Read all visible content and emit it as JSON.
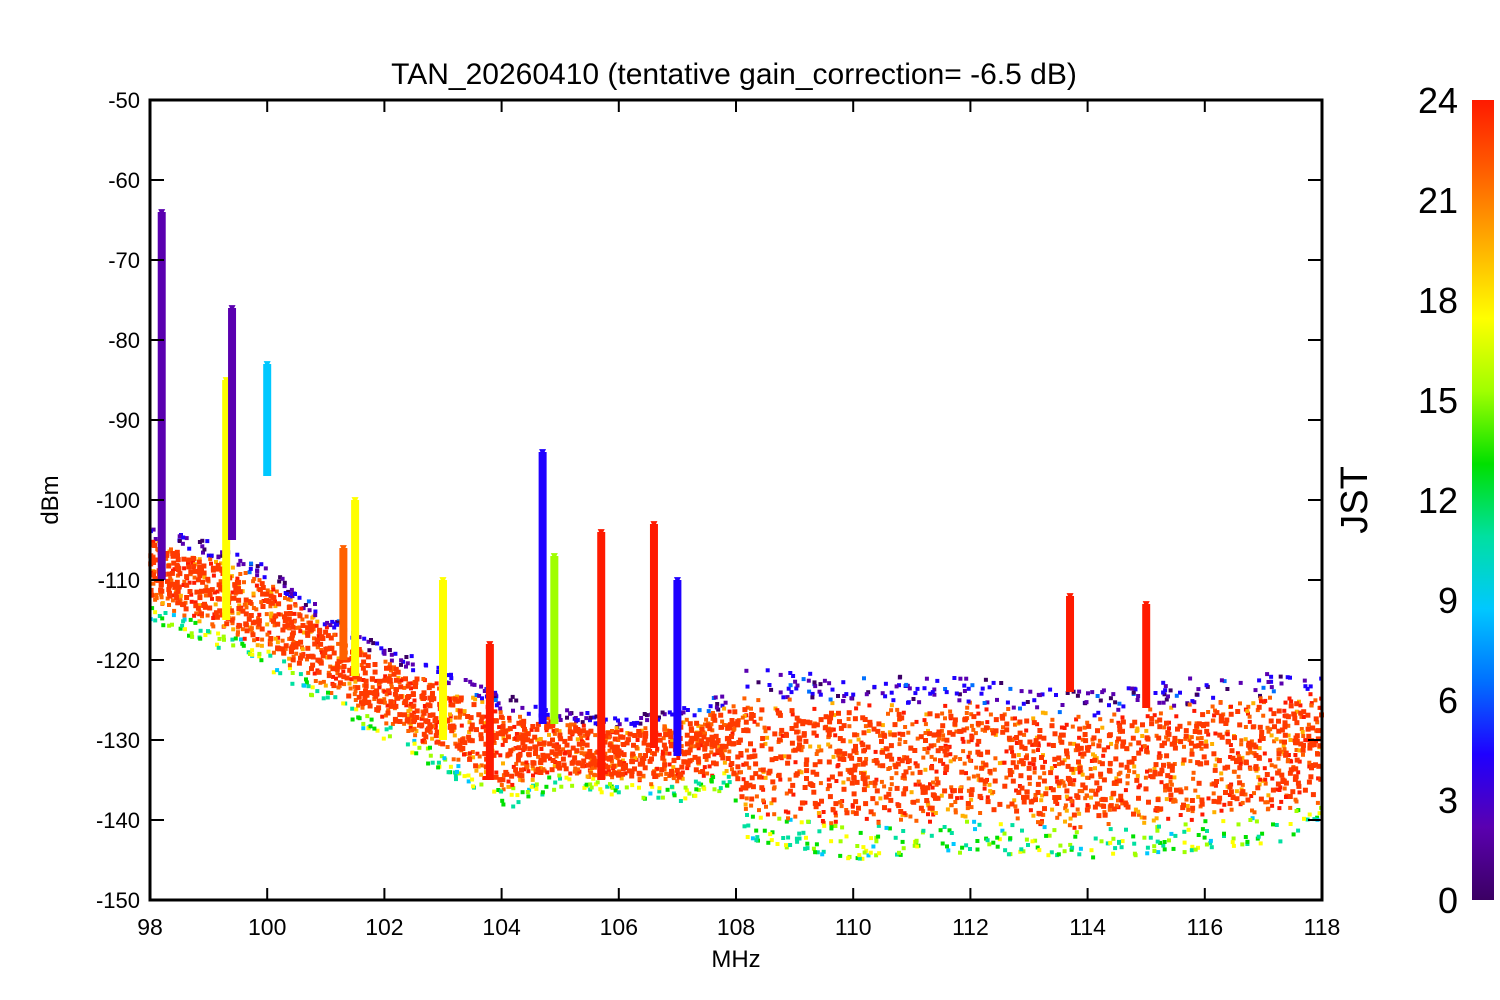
{
  "chart_data": {
    "type": "scatter",
    "title": "TAN_20260410 (tentative gain_correction= -6.5 dB)",
    "xlabel": "MHz",
    "ylabel": "dBm",
    "xlim": [
      98,
      118
    ],
    "ylim": [
      -150,
      -50
    ],
    "xticks": [
      98,
      100,
      102,
      104,
      106,
      108,
      110,
      112,
      114,
      116,
      118
    ],
    "yticks": [
      -50,
      -60,
      -70,
      -80,
      -90,
      -100,
      -110,
      -120,
      -130,
      -140,
      -150
    ],
    "colorbar": {
      "label": "JST",
      "range": [
        0,
        24
      ],
      "ticks": [
        0,
        3,
        6,
        9,
        12,
        15,
        18,
        21,
        24
      ],
      "colormap": "rainbow",
      "colors": [
        "#3b0063",
        "#5a00b0",
        "#1f00ff",
        "#0070ff",
        "#00c8ff",
        "#00e0a0",
        "#00e000",
        "#a0ff00",
        "#ffff00",
        "#ffb000",
        "#ff6000",
        "#ff1a00"
      ]
    },
    "noise_floor": [
      {
        "x": 98.0,
        "lo": -115,
        "hi": -103
      },
      {
        "x": 99.0,
        "lo": -118,
        "hi": -105
      },
      {
        "x": 100.0,
        "lo": -121,
        "hi": -108
      },
      {
        "x": 101.0,
        "lo": -126,
        "hi": -114
      },
      {
        "x": 102.0,
        "lo": -130,
        "hi": -118
      },
      {
        "x": 103.0,
        "lo": -134,
        "hi": -121
      },
      {
        "x": 104.0,
        "lo": -139,
        "hi": -124
      },
      {
        "x": 105.0,
        "lo": -136,
        "hi": -126
      },
      {
        "x": 106.0,
        "lo": -137,
        "hi": -127
      },
      {
        "x": 107.0,
        "lo": -138,
        "hi": -126
      },
      {
        "x": 107.9,
        "lo": -136,
        "hi": -124
      },
      {
        "x": 108.1,
        "lo": -143,
        "hi": -121
      },
      {
        "x": 110.0,
        "lo": -145,
        "hi": -122
      },
      {
        "x": 112.0,
        "lo": -144,
        "hi": -122
      },
      {
        "x": 114.0,
        "lo": -145,
        "hi": -124
      },
      {
        "x": 116.0,
        "lo": -144,
        "hi": -122
      },
      {
        "x": 118.0,
        "lo": -142,
        "hi": -121
      }
    ],
    "spikes": [
      {
        "x": 98.2,
        "top": -64,
        "bottom": -110,
        "jst": 2
      },
      {
        "x": 99.3,
        "top": -85,
        "bottom": -115,
        "jst": 18
      },
      {
        "x": 99.4,
        "top": -76,
        "bottom": -105,
        "jst": 2
      },
      {
        "x": 100.0,
        "top": -83,
        "bottom": -97,
        "jst": 9
      },
      {
        "x": 101.3,
        "top": -106,
        "bottom": -120,
        "jst": 21
      },
      {
        "x": 101.5,
        "top": -100,
        "bottom": -122,
        "jst": 18
      },
      {
        "x": 103.0,
        "top": -110,
        "bottom": -130,
        "jst": 18
      },
      {
        "x": 103.8,
        "top": -118,
        "bottom": -135,
        "jst": 23
      },
      {
        "x": 104.7,
        "top": -94,
        "bottom": -128,
        "jst": 5
      },
      {
        "x": 104.9,
        "top": -107,
        "bottom": -128,
        "jst": 15
      },
      {
        "x": 105.7,
        "top": -104,
        "bottom": -135,
        "jst": 23
      },
      {
        "x": 106.6,
        "top": -103,
        "bottom": -131,
        "jst": 23
      },
      {
        "x": 107.0,
        "top": -110,
        "bottom": -132,
        "jst": 5
      },
      {
        "x": 113.7,
        "top": -112,
        "bottom": -124,
        "jst": 23
      },
      {
        "x": 115.0,
        "top": -113,
        "bottom": -126,
        "jst": 23
      }
    ]
  }
}
